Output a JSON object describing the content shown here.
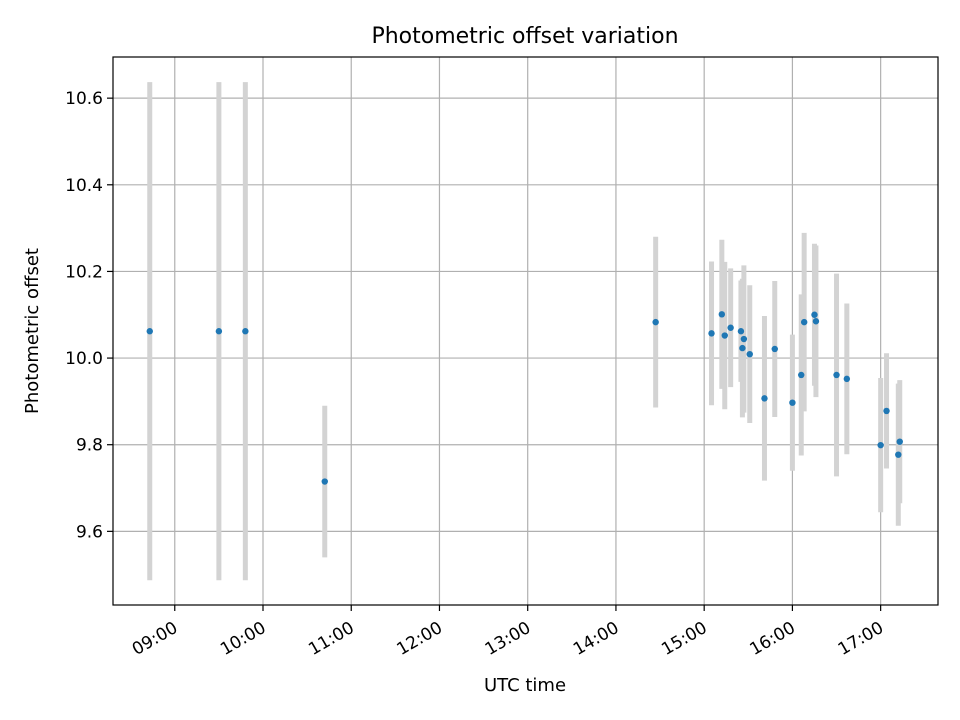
{
  "chart_data": {
    "type": "scatter",
    "title": "Photometric offset variation",
    "xlabel": "UTC time",
    "ylabel": "Photometric offset",
    "xlim": [
      "08:18",
      "17:39"
    ],
    "ylim": [
      9.43,
      10.695
    ],
    "x_ticks": [
      "09:00",
      "10:00",
      "11:00",
      "12:00",
      "13:00",
      "14:00",
      "15:00",
      "16:00",
      "17:00"
    ],
    "y_ticks": [
      "9.6",
      "9.8",
      "10.0",
      "10.2",
      "10.4",
      "10.6"
    ],
    "grid": true,
    "marker_color": "#1f77b4",
    "errorbar_color": "#d3d3d3",
    "points": [
      {
        "t": "08:43",
        "y": 10.062,
        "err": 0.575
      },
      {
        "t": "09:30",
        "y": 10.062,
        "err": 0.575
      },
      {
        "t": "09:48",
        "y": 10.062,
        "err": 0.575
      },
      {
        "t": "10:42",
        "y": 9.715,
        "err": 0.175
      },
      {
        "t": "14:27",
        "y": 10.083,
        "err": 0.197
      },
      {
        "t": "15:05",
        "y": 10.057,
        "err": 0.166
      },
      {
        "t": "15:12",
        "y": 10.101,
        "err": 0.172
      },
      {
        "t": "15:14",
        "y": 10.052,
        "err": 0.17
      },
      {
        "t": "15:18",
        "y": 10.07,
        "err": 0.137
      },
      {
        "t": "15:25",
        "y": 10.062,
        "err": 0.117
      },
      {
        "t": "15:27",
        "y": 10.044,
        "err": 0.17
      },
      {
        "t": "15:26",
        "y": 10.023,
        "err": 0.16
      },
      {
        "t": "15:31",
        "y": 10.009,
        "err": 0.159
      },
      {
        "t": "15:41",
        "y": 9.907,
        "err": 0.19
      },
      {
        "t": "15:48",
        "y": 10.021,
        "err": 0.157
      },
      {
        "t": "16:00",
        "y": 9.897,
        "err": 0.157
      },
      {
        "t": "16:06",
        "y": 9.961,
        "err": 0.186
      },
      {
        "t": "16:08",
        "y": 10.083,
        "err": 0.206
      },
      {
        "t": "16:15",
        "y": 10.1,
        "err": 0.164
      },
      {
        "t": "16:16",
        "y": 10.085,
        "err": 0.175
      },
      {
        "t": "16:30",
        "y": 9.961,
        "err": 0.234
      },
      {
        "t": "16:37",
        "y": 9.952,
        "err": 0.174
      },
      {
        "t": "17:00",
        "y": 9.799,
        "err": 0.155
      },
      {
        "t": "17:04",
        "y": 9.878,
        "err": 0.133
      },
      {
        "t": "17:12",
        "y": 9.777,
        "err": 0.164
      },
      {
        "t": "17:13",
        "y": 9.807,
        "err": 0.142
      }
    ]
  }
}
